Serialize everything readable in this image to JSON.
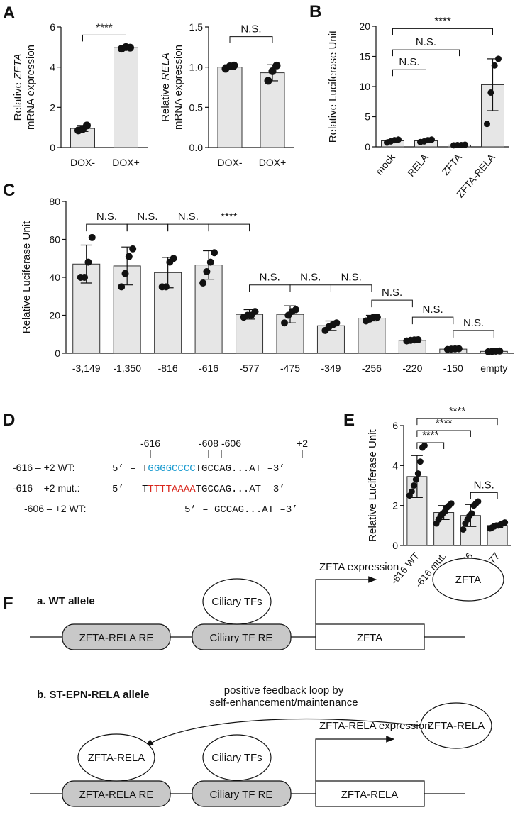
{
  "panels": {
    "A": "A",
    "B": "B",
    "C": "C",
    "D": "D",
    "E": "E",
    "F": "F"
  },
  "colors": {
    "bar_fill": "#e6e6e6",
    "bar_stroke": "#333333",
    "point": "#111111",
    "text": "#111111",
    "wt_motif": "#1a9bd0",
    "mut_motif": "#d9261c",
    "element_fill": "#c8c8c8"
  },
  "chart_data": [
    {
      "id": "A1",
      "type": "bar",
      "ylabel_lines": [
        "Relative ZFTA",
        "mRNA expression"
      ],
      "ylabel_italic_word": "ZFTA",
      "categories": [
        "DOX-",
        "DOX+"
      ],
      "values": [
        0.95,
        4.97
      ],
      "errors": [
        0.15,
        0.07
      ],
      "points": [
        [
          0.85,
          0.92,
          1.1
        ],
        [
          4.92,
          5.0,
          4.97
        ]
      ],
      "ylim": [
        0,
        6
      ],
      "yticks": [
        0,
        2,
        4,
        6
      ],
      "tick_labels": [
        "0",
        "2",
        "4",
        "6"
      ],
      "comparisons": [
        {
          "from": 0,
          "to": 1,
          "label": "****"
        }
      ]
    },
    {
      "id": "A2",
      "type": "bar",
      "ylabel_lines": [
        "Relative RELA",
        "mRNA expression"
      ],
      "ylabel_italic_word": "RELA",
      "categories": [
        "DOX-",
        "DOX+"
      ],
      "values": [
        1.0,
        0.93
      ],
      "errors": [
        0.03,
        0.1
      ],
      "points": [
        [
          0.98,
          1.01,
          1.02
        ],
        [
          0.83,
          0.95,
          1.02
        ]
      ],
      "ylim": [
        0,
        1.5
      ],
      "yticks": [
        0,
        0.5,
        1.0,
        1.5
      ],
      "tick_labels": [
        "0.0",
        "0.5",
        "1.0",
        "1.5"
      ],
      "comparisons": [
        {
          "from": 0,
          "to": 1,
          "label": "N.S."
        }
      ]
    },
    {
      "id": "B",
      "type": "bar",
      "ylabel": "Relative Luciferase Unit",
      "categories": [
        "mock",
        "RELA",
        "ZFTA",
        "ZFTA-RELA"
      ],
      "rotate_labels": true,
      "values": [
        1.0,
        1.0,
        0.3,
        10.3
      ],
      "errors": [
        0.2,
        0.2,
        0.05,
        4.3
      ],
      "points": [
        [
          0.7,
          0.9,
          1.1,
          1.2
        ],
        [
          0.8,
          0.9,
          1.1,
          1.2
        ],
        [
          0.25,
          0.3,
          0.3,
          0.35
        ],
        [
          3.8,
          9.0,
          13.5,
          14.6
        ]
      ],
      "ylim": [
        0,
        20
      ],
      "yticks": [
        0,
        5,
        10,
        15,
        20
      ],
      "tick_labels": [
        "0",
        "5",
        "10",
        "15",
        "20"
      ],
      "comparisons": [
        {
          "from": 0,
          "to": 1,
          "label": "N.S."
        },
        {
          "from": 0,
          "to": 2,
          "label": "N.S."
        },
        {
          "from": 0,
          "to": 3,
          "label": "****"
        }
      ]
    },
    {
      "id": "C",
      "type": "bar",
      "ylabel": "Relative Luciferase Unit",
      "categories": [
        "-3,149",
        "-1,350",
        "-816",
        "-616",
        "-577",
        "-475",
        "-349",
        "-256",
        "-220",
        "-150",
        "empty"
      ],
      "values": [
        47,
        46,
        42.5,
        46.5,
        20.5,
        20.5,
        14.5,
        18.5,
        6.8,
        2.2,
        1.0
      ],
      "errors": [
        10,
        10,
        8,
        7.5,
        2.5,
        4.5,
        2.5,
        1.5,
        0.5,
        0.3,
        0.2
      ],
      "points": [
        [
          40,
          40,
          48,
          61
        ],
        [
          35,
          42,
          51,
          55
        ],
        [
          35,
          35,
          48,
          50
        ],
        [
          37,
          43,
          48,
          53
        ],
        [
          19,
          20,
          20,
          22
        ],
        [
          16,
          20,
          22,
          23
        ],
        [
          12,
          14,
          15,
          16
        ],
        [
          17,
          18,
          19,
          19
        ],
        [
          6.5,
          6.8,
          7.0,
          7.1
        ],
        [
          2.0,
          2.2,
          2.3,
          2.4
        ],
        [
          0.8,
          1.0,
          1.1,
          1.2
        ]
      ],
      "ylim": [
        0,
        80
      ],
      "yticks": [
        0,
        20,
        40,
        60,
        80
      ],
      "tick_labels": [
        "0",
        "20",
        "40",
        "60",
        "80"
      ],
      "comparisons": [
        {
          "from": 0,
          "to": 1,
          "label": "N.S.",
          "y": 68
        },
        {
          "from": 1,
          "to": 2,
          "label": "N.S.",
          "y": 68
        },
        {
          "from": 2,
          "to": 3,
          "label": "N.S.",
          "y": 68
        },
        {
          "from": 3,
          "to": 4,
          "label": "****",
          "y": 68
        },
        {
          "from": 4,
          "to": 5,
          "label": "N.S.",
          "y": 36
        },
        {
          "from": 5,
          "to": 6,
          "label": "N.S.",
          "y": 36
        },
        {
          "from": 6,
          "to": 7,
          "label": "N.S.",
          "y": 36
        },
        {
          "from": 7,
          "to": 8,
          "label": "N.S.",
          "y": 28
        },
        {
          "from": 8,
          "to": 9,
          "label": "N.S.",
          "y": 19
        },
        {
          "from": 9,
          "to": 10,
          "label": "N.S.",
          "y": 12
        }
      ]
    },
    {
      "id": "E",
      "type": "bar",
      "ylabel": "Relative Luciferase Unit",
      "categories": [
        "-616 WT",
        "-616 mut.",
        "-606",
        "-577"
      ],
      "rotate_labels": true,
      "values": [
        3.45,
        1.65,
        1.5,
        1.0
      ],
      "errors": [
        1.05,
        0.35,
        0.55,
        0.1
      ],
      "points": [
        [
          2.5,
          2.7,
          3.0,
          3.3,
          3.6,
          4.2,
          4.9,
          5.0
        ],
        [
          1.1,
          1.3,
          1.5,
          1.6,
          1.7,
          1.9,
          2.0,
          2.1
        ],
        [
          0.8,
          1.1,
          1.3,
          1.5,
          1.6,
          2.0,
          2.1,
          2.2
        ],
        [
          0.85,
          0.9,
          0.95,
          1.0,
          1.0,
          1.05,
          1.1,
          1.15
        ]
      ],
      "ylim": [
        0,
        6
      ],
      "yticks": [
        0,
        2,
        4,
        6
      ],
      "tick_labels": [
        "0",
        "2",
        "4",
        "6"
      ],
      "comparisons": [
        {
          "from": 0,
          "to": 1,
          "label": "****",
          "y": 5.15
        },
        {
          "from": 0,
          "to": 2,
          "label": "****",
          "y": 5.75
        },
        {
          "from": 0,
          "to": 3,
          "label": "****",
          "y": 6.35
        },
        {
          "from": 2,
          "to": 3,
          "label": "N.S.",
          "y": 2.65
        }
      ]
    }
  ],
  "sequences": {
    "positions": [
      "-616",
      "-608",
      "-606",
      "+2"
    ],
    "rows": [
      {
        "label": "-616 – +2 WT:",
        "prefix": "5’ – T",
        "motif": "GGGGCCCC",
        "motif_color": "wt",
        "suffix": "TGCCAG...AT –3’"
      },
      {
        "label": "-616 – +2 mut.:",
        "prefix": "5’ – T",
        "motif": "TTTTAAAA",
        "motif_color": "mut",
        "suffix": "TGCCAG...AT –3’"
      },
      {
        "label": "-606 – +2 WT:",
        "prefix": "5’ – GCCAG...AT –3’",
        "motif": "",
        "motif_color": "",
        "suffix": ""
      }
    ]
  },
  "diagram": {
    "a_title": "a. WT allele",
    "b_title": "b. ST-EPN-RELA allele",
    "zfta_rela_re": "ZFTA-RELA RE",
    "ciliary_tf_re": "Ciliary TF RE",
    "ciliary_tfs": "Ciliary TFs",
    "zfta_gene": "ZFTA",
    "zfta_expression": "ZFTA expression",
    "zfta_protein": "ZFTA",
    "feedback_line1": "positive feedback loop by",
    "feedback_line2": "self-enhancement/maintenance",
    "zfta_rela_protein": "ZFTA-RELA",
    "zfta_rela_gene": "ZFTA-RELA",
    "zfta_rela_expression": "ZFTA-RELA expression"
  }
}
